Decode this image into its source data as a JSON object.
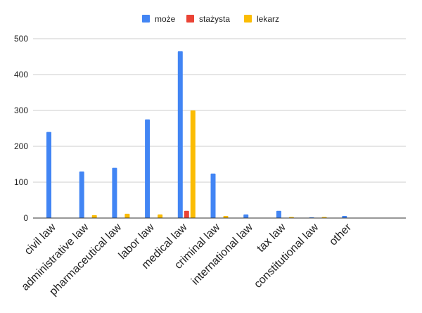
{
  "chart_data": {
    "type": "bar",
    "categories": [
      "civil law",
      "administrative law",
      "pharmaceutical law",
      "labor law",
      "medical law",
      "criminal law",
      "international law",
      "tax law",
      "constitutional law",
      "other"
    ],
    "series": [
      {
        "name": "może",
        "color": "#4285f4",
        "values": [
          240,
          130,
          140,
          275,
          465,
          124,
          10,
          20,
          2,
          6
        ]
      },
      {
        "name": "stażysta",
        "color": "#ea4335",
        "values": [
          0,
          0,
          0,
          0,
          20,
          0,
          0,
          0,
          0,
          0
        ]
      },
      {
        "name": "lekarz",
        "color": "#fbbc04",
        "values": [
          0,
          8,
          12,
          10,
          300,
          6,
          0,
          3,
          3,
          0
        ]
      }
    ],
    "ylim": [
      0,
      500
    ],
    "yticks": [
      0,
      100,
      200,
      300,
      400,
      500
    ],
    "title": "",
    "xlabel": "",
    "ylabel": "",
    "grid": true,
    "legend_position": "top-center"
  }
}
